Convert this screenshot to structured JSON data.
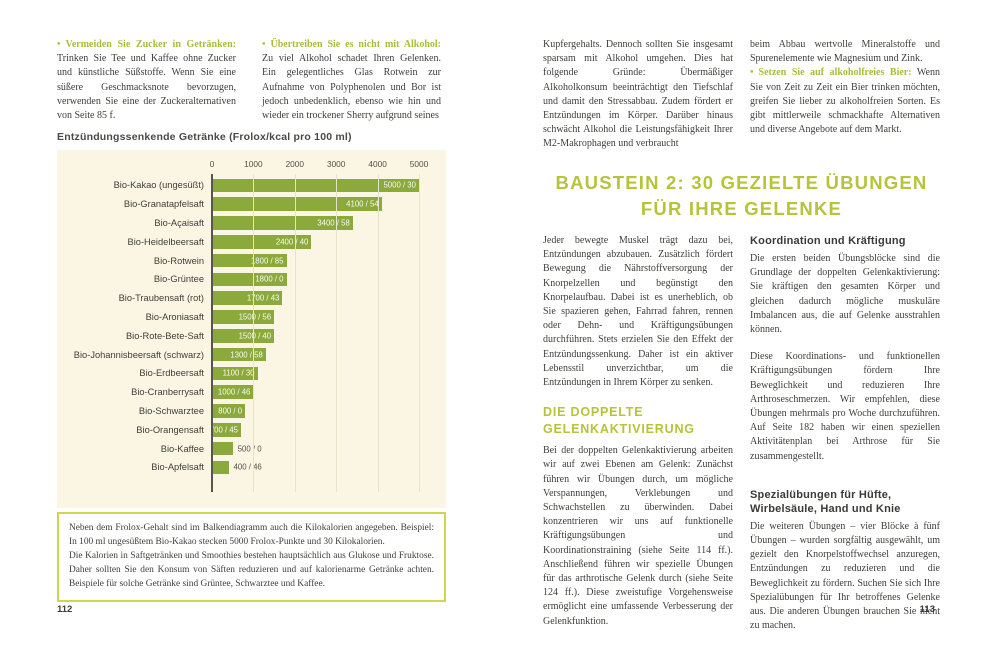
{
  "ui": {
    "bullet_char": "•",
    "accent_color": "#b5c438",
    "bar_color": "#8caa3c",
    "chart_background": "#faf6e3",
    "note_border_color": "#ccd64e"
  },
  "left_page": {
    "page_number": "112",
    "bullets": [
      {
        "lead": "Vermeiden Sie Zucker in Getränken:",
        "text": "Trinken Sie Tee und Kaffee ohne Zucker und künstliche Süßstoffe. Wenn Sie eine süßere Geschmacksnote bevorzugen, verwenden Sie eine der Zuckeralternativen von Seite 85 f."
      },
      {
        "lead": "Übertreiben Sie es nicht mit Alkohol:",
        "text": "Zu viel Alkohol schadet Ihren Gelenken. Ein gelegentliches Glas Rotwein zur Aufnahme von Polyphenolen und Bor ist jedoch unbedenklich, ebenso wie hin und wieder ein trockener Sherry aufgrund seines"
      }
    ],
    "note_lines": [
      "Neben dem Frolox-Gehalt sind im Balkendiagramm auch die Kilokalorien angegeben. Beispiel: In 100 ml ungesüßtem Bio-Kakao stecken 5000 Frolox-Punkte und 30 Kilokalorien.",
      "Die Kalorien in Saftgetränken und Smoothies bestehen hauptsächlich aus Glukose und Fruktose. Daher sollten Sie den Konsum von Säften reduzieren und auf kalorienarme Getränke achten. Beispiele für solche Getränke sind Grüntee, Schwarztee und Kaffee."
    ]
  },
  "chart_data": {
    "type": "bar",
    "orientation": "horizontal",
    "title": "Entzündungssenkende Getränke (Frolox/kcal pro 100 ml)",
    "xlim": [
      0,
      5000
    ],
    "x_ticks": [
      0,
      1000,
      2000,
      3000,
      4000,
      5000
    ],
    "grid": "vertical-light",
    "legend": "none",
    "categories": [
      "Bio-Kakao (ungesüßt)",
      "Bio-Granatapfelsaft",
      "Bio-Açaisaft",
      "Bio-Heidelbeersaft",
      "Bio-Rotwein",
      "Bio-Grüntee",
      "Bio-Traubensaft (rot)",
      "Bio-Aroniasaft",
      "Bio-Rote-Bete-Saft",
      "Bio-Johannisbeersaft (schwarz)",
      "Bio-Erdbeersaft",
      "Bio-Cranberrysaft",
      "Bio-Schwarztee",
      "Bio-Orangensaft",
      "Bio-Kaffee",
      "Bio-Apfelsaft"
    ],
    "frolox_values": [
      5000,
      4100,
      3400,
      2400,
      1800,
      1800,
      1700,
      1500,
      1500,
      1300,
      1100,
      1000,
      800,
      700,
      500,
      400
    ],
    "kcal_values": [
      30,
      54,
      58,
      40,
      85,
      0,
      43,
      56,
      40,
      58,
      30,
      46,
      0,
      45,
      0,
      46
    ],
    "bar_labels": [
      "5000 / 30",
      "4100 / 54",
      "3400 / 58",
      "2400 / 40",
      "1800 / 85",
      "1800 / 0",
      "1700 / 43",
      "1500 / 56",
      "1500 / 40",
      "1300 / 58",
      "1100 / 30",
      "1000 / 46",
      "800 / 0",
      "700 / 45",
      "500 / 0",
      "400 / 46"
    ]
  },
  "right_page": {
    "page_number": "113",
    "col1_top": "Kupfergehalts. Dennoch sollten Sie insgesamt sparsam mit Alkohol umgehen. Dies hat folgende Gründe: Übermäßiger Alkoholkonsum beeinträchtigt den Tiefschlaf und damit den Stressabbau. Zudem fördert er Entzündungen im Körper. Darüber hinaus schwächt Alkohol die Leistungsfähigkeit Ihrer M2-Makrophagen und verbraucht",
    "col2_top": "beim Abbau wertvolle Mineralstoffe und Spurenelemente wie Magnesium und Zink.",
    "bullet": {
      "lead": "Setzen Sie auf alkoholfreies Bier:",
      "text": "Wenn Sie von Zeit zu Zeit ein Bier trinken möchten, greifen Sie lieber zu alkoholfreien Sorten. Es gibt mittlerweile schmackhafte Alternativen und diverse Angebote auf dem Markt."
    },
    "heading": "BAUSTEIN 2: 30 GEZIELTE ÜBUNGEN FÜR IHRE GELENKE",
    "intro": "Jeder bewegte Muskel trägt dazu bei, Entzündungen abzubauen. Zusätzlich fördert Bewegung die Nährstoffversorgung der Knorpelzellen und begünstigt den Knorpelaufbau. Dabei ist es unerheblich, ob Sie spazieren gehen, Fahrrad fahren, rennen oder Dehn- und Kräftigungsübungen durchführen. Stets erzielen Sie den Effekt der Entzündungssenkung. Daher ist ein aktiver Lebensstil unverzichtbar, um die Entzündungen in Ihrem Körper zu senken.",
    "subheading": "DIE DOPPELTE GELENKAKTIVIERUNG",
    "double_activation": "Bei der doppelten Gelenkaktivierung arbeiten wir auf zwei Ebenen am Gelenk: Zunächst führen wir Übungen durch, um mögliche Verspannungen, Verklebungen und Schwachstellen zu überwinden. Dabei konzentrieren wir uns auf funktionelle Kräftigungsübungen und Koordinationstraining (siehe Seite 114 ff.). Anschließend führen wir spezielle Übungen für das arthrotische Gelenk durch (siehe Seite 124 ff.). Diese zweistufige Vorgehensweise ermöglicht eine umfassende Verbesserung der Gelenkfunktion.",
    "col2": {
      "h1": "Koordination und Kräftigung",
      "p1": "Die ersten beiden Übungsblöcke sind die Grundlage der doppelten Gelenkaktivierung: Sie kräftigen den gesamten Körper und gleichen dadurch mögliche muskuläre Imbalancen aus, die auf Gelenke ausstrahlen können.",
      "p2": "Diese Koordinations- und funktionellen Kräftigungsübungen fördern Ihre Beweglichkeit und reduzieren Ihre Arthroseschmerzen. Wir empfehlen, diese Übungen mehrmals pro Woche durchzuführen. Auf Seite 182 haben wir einen speziellen Aktivitätenplan bei Arthrose für Sie zusammengestellt.",
      "h2": "Spezialübungen für Hüfte, Wirbelsäule, Hand und Knie",
      "p3": "Die weiteren Übungen – vier Blöcke à fünf Übungen – wurden sorgfältig ausgewählt, um gezielt den Knorpelstoffwechsel anzuregen, Entzündungen zu reduzieren und die Beweglichkeit zu fördern. Suchen Sie sich Ihre Spezialübungen für Ihr betroffenes Gelenke aus. Die anderen Übungen brauchen Sie nicht zu machen."
    }
  }
}
